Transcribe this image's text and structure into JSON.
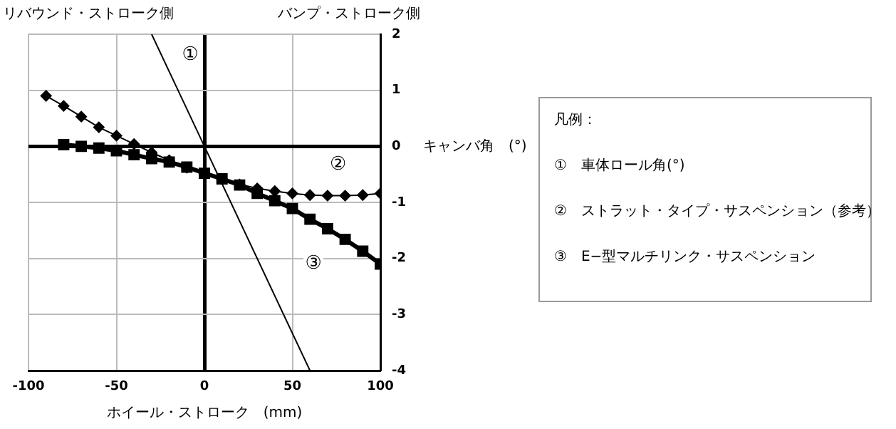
{
  "chart_data": {
    "type": "line",
    "xlabel": "ホイール・ストローク　(mm)",
    "ylabel": "キャンバ角　(°)",
    "xlim": [
      -100,
      100
    ],
    "xticks": [
      -100,
      -50,
      0,
      50,
      100
    ],
    "ylim": [
      -4,
      2
    ],
    "yticks": [
      -4,
      -3,
      -2,
      -1,
      0,
      1,
      2
    ],
    "grid": true,
    "series": [
      {
        "color": "#000000",
        "marker": "none",
        "x": [
          -30,
          60
        ],
        "values": [
          2,
          -4
        ]
      },
      {
        "color": "#000000",
        "marker": "diamond",
        "x": [
          -90,
          -80,
          -70,
          -60,
          -50,
          -40,
          -30,
          -20,
          -10,
          0,
          10,
          20,
          30,
          40,
          50,
          60,
          70,
          80,
          90,
          100
        ],
        "values": [
          0.9,
          0.72,
          0.53,
          0.34,
          0.19,
          0.04,
          -0.11,
          -0.25,
          -0.38,
          -0.5,
          -0.58,
          -0.68,
          -0.75,
          -0.8,
          -0.84,
          -0.87,
          -0.88,
          -0.88,
          -0.87,
          -0.84
        ]
      },
      {
        "color": "#000000",
        "marker": "square",
        "x": [
          -80,
          -70,
          -60,
          -50,
          -40,
          -30,
          -20,
          -10,
          0,
          10,
          20,
          30,
          40,
          50,
          60,
          70,
          80,
          90,
          100
        ],
        "values": [
          0.03,
          0,
          -0.03,
          -0.08,
          -0.15,
          -0.22,
          -0.28,
          -0.37,
          -0.48,
          -0.58,
          -0.69,
          -0.84,
          -0.97,
          -1.11,
          -1.3,
          -1.47,
          -1.66,
          -1.87,
          -2.1
        ]
      }
    ],
    "annotations": [
      "リバウンド・ストローク側",
      "バンプ・ストローク側",
      "凡例：",
      "①　車体ロール角(°)",
      "②　ストラット・タイプ・サスペンション（参考）",
      "③　E−型マルチリンク・サスペンション",
      {
        "text": "①",
        "x": -8,
        "y": 1.63
      },
      {
        "text": "②",
        "x": 76,
        "y": -0.33
      },
      {
        "text": "③",
        "x": 62,
        "y": -2.1
      }
    ]
  }
}
